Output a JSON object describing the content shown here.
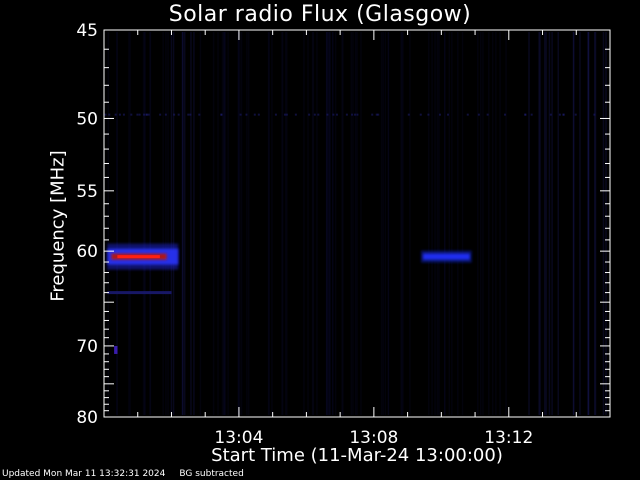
{
  "chart_data": {
    "type": "heatmap",
    "title": "Solar radio Flux (Glasgow)",
    "xlabel": "Start Time (11-Mar-24 13:00:00)",
    "ylabel": "Frequency [MHz]",
    "x_ticks": [
      "13:04",
      "13:08",
      "13:12"
    ],
    "x_tick_minutes": [
      4,
      8,
      12
    ],
    "xlim_minutes": [
      0,
      15
    ],
    "y_ticks": [
      45,
      50,
      55,
      60,
      70,
      80
    ],
    "ylim": [
      45,
      80
    ],
    "y_scale": "reciprocal",
    "grid": false,
    "features": [
      {
        "t_start": 0.1,
        "t_end": 2.2,
        "freq": 60.5,
        "intensity": "high",
        "color": "#ff2010"
      },
      {
        "t_start": 9.4,
        "t_end": 10.9,
        "freq": 60.5,
        "intensity": "medium",
        "color": "#2030ff"
      },
      {
        "t_start": 0.1,
        "t_end": 2.0,
        "freq": 64.0,
        "intensity": "low",
        "color": "#1a1a70"
      },
      {
        "t_start": 0.3,
        "t_end": 0.4,
        "freq": 70.5,
        "intensity": "low",
        "color": "#4020c0"
      }
    ]
  },
  "footer": {
    "updated": "Updated Mon Mar 11 13:32:31 2024",
    "bg": "BG subtracted"
  }
}
